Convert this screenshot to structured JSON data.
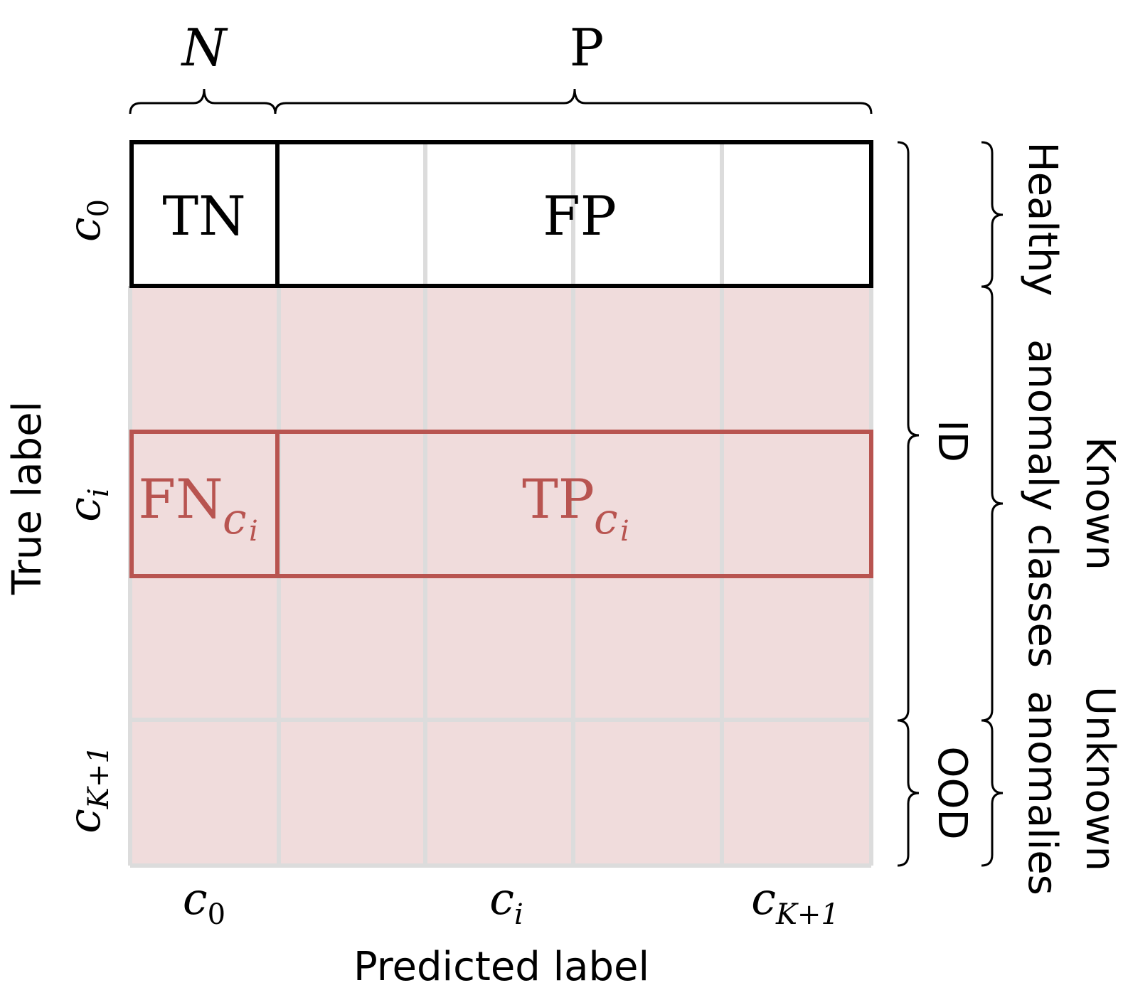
{
  "header": {
    "negative_label": "N",
    "positive_label": "P"
  },
  "matrix": {
    "cells": {
      "tn": "TN",
      "fp": "FP",
      "fn_main": "FN",
      "fn_sub": "c",
      "fn_subsub": "i",
      "tp_main": "TP",
      "tp_sub": "c",
      "tp_subsub": "i"
    },
    "fill_color": "#f0dcdc",
    "highlight_color": "#b85450",
    "grid_color": "#dcdcdc"
  },
  "y_axis": {
    "title": "True label",
    "ticks": [
      {
        "base": "c",
        "sub": "0"
      },
      {
        "base": "c",
        "sub": "i"
      },
      {
        "base": "c",
        "sub": "K+1"
      }
    ]
  },
  "x_axis": {
    "title": "Predicted label",
    "ticks": [
      {
        "base": "c",
        "sub": "0"
      },
      {
        "base": "c",
        "sub": "i"
      },
      {
        "base": "c",
        "sub": "K+1"
      }
    ]
  },
  "right_groups": {
    "inner": {
      "id": "ID",
      "ood": "OOD"
    },
    "outer": {
      "healthy": "Healthy",
      "known_line1": "Known",
      "known_line2": "anomaly classes",
      "unknown_line1": "Unknown",
      "unknown_line2": "anomalies"
    }
  }
}
